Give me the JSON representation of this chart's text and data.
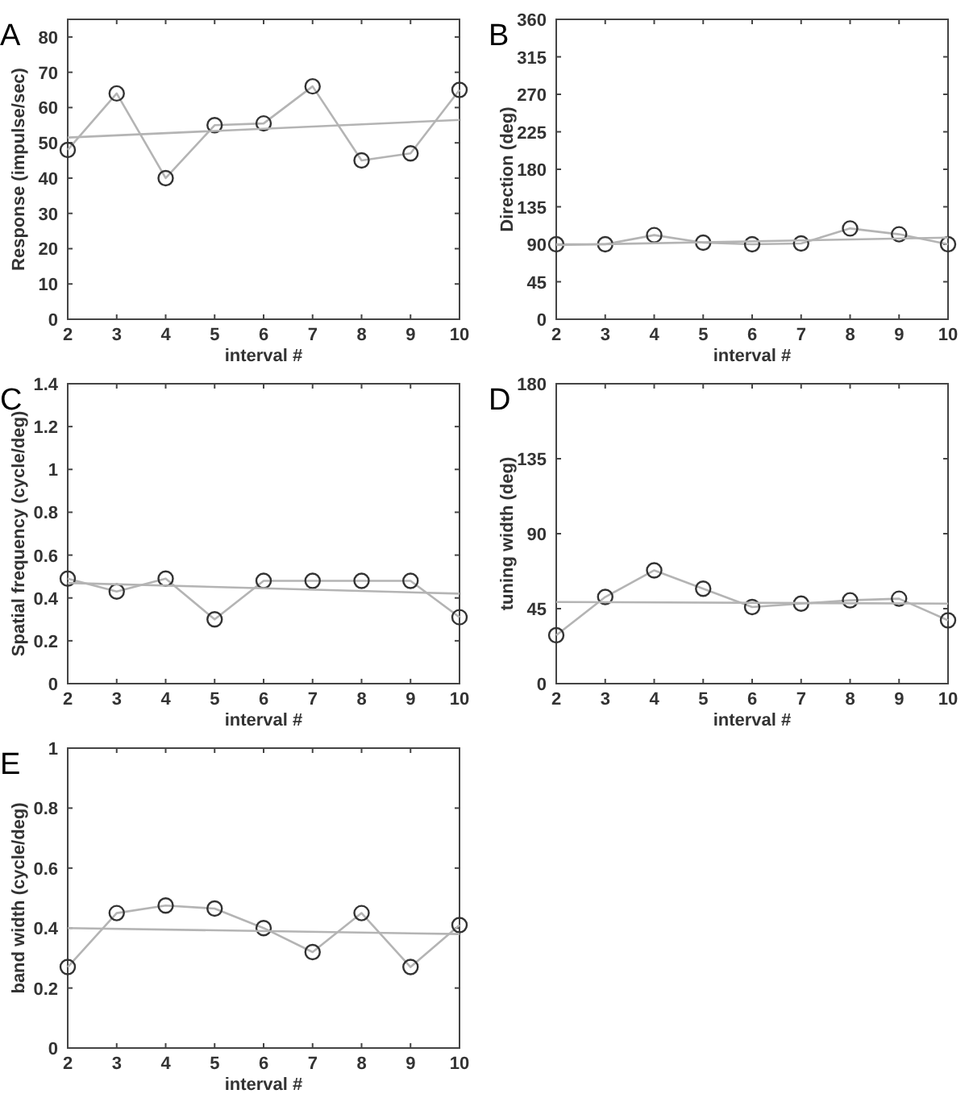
{
  "chart_data": [
    {
      "type": "line",
      "title": "A",
      "xlabel": "interval #",
      "ylabel": "Response (impulse/sec)",
      "xlim": [
        2,
        10
      ],
      "xticks": [
        2,
        3,
        4,
        5,
        6,
        7,
        8,
        9,
        10
      ],
      "ylim": [
        0,
        85
      ],
      "yticks": [
        0,
        10,
        20,
        30,
        40,
        50,
        60,
        70,
        80
      ],
      "series": [
        {
          "color": "#b4b4b4",
          "marker": "circle",
          "x": [
            2,
            3,
            4,
            5,
            6,
            7,
            8,
            9,
            10
          ],
          "values": [
            48,
            64,
            40,
            55,
            55.5,
            66,
            45,
            47,
            65
          ]
        },
        {
          "color": "#b4b4b4",
          "marker": "none",
          "x": [
            2,
            10
          ],
          "values": [
            51.5,
            56.5
          ]
        }
      ]
    },
    {
      "type": "line",
      "title": "B",
      "xlabel": "interval #",
      "ylabel": "Direction (deg)",
      "xlim": [
        2,
        10
      ],
      "xticks": [
        2,
        3,
        4,
        5,
        6,
        7,
        8,
        9,
        10
      ],
      "ylim": [
        0,
        360
      ],
      "yticks": [
        0,
        45,
        90,
        135,
        180,
        225,
        270,
        315,
        360
      ],
      "series": [
        {
          "color": "#b4b4b4",
          "marker": "circle",
          "x": [
            2,
            3,
            4,
            5,
            6,
            7,
            8,
            9,
            10
          ],
          "values": [
            90,
            90,
            101,
            92,
            90,
            91,
            109,
            102,
            90
          ]
        },
        {
          "color": "#b4b4b4",
          "marker": "none",
          "x": [
            2,
            10
          ],
          "values": [
            89,
            98
          ]
        }
      ]
    },
    {
      "type": "line",
      "title": "C",
      "xlabel": "interval #",
      "ylabel": "Spatial frequency (cycle/deg)",
      "xlim": [
        2,
        10
      ],
      "xticks": [
        2,
        3,
        4,
        5,
        6,
        7,
        8,
        9,
        10
      ],
      "ylim": [
        0,
        1.4
      ],
      "yticks": [
        0,
        0.2,
        0.4,
        0.6,
        0.8,
        1,
        1.2,
        1.4
      ],
      "series": [
        {
          "color": "#b4b4b4",
          "marker": "circle",
          "x": [
            2,
            3,
            4,
            5,
            6,
            7,
            8,
            9,
            10
          ],
          "values": [
            0.49,
            0.43,
            0.49,
            0.3,
            0.48,
            0.48,
            0.48,
            0.48,
            0.31
          ]
        },
        {
          "color": "#b4b4b4",
          "marker": "none",
          "x": [
            2,
            10
          ],
          "values": [
            0.47,
            0.42
          ]
        }
      ]
    },
    {
      "type": "line",
      "title": "D",
      "xlabel": "interval #",
      "ylabel": "tuning width (deg)",
      "xlim": [
        2,
        10
      ],
      "xticks": [
        2,
        3,
        4,
        5,
        6,
        7,
        8,
        9,
        10
      ],
      "ylim": [
        0,
        180
      ],
      "yticks": [
        0,
        45,
        90,
        135,
        180
      ],
      "series": [
        {
          "color": "#b4b4b4",
          "marker": "circle",
          "x": [
            2,
            3,
            4,
            5,
            6,
            7,
            8,
            9,
            10
          ],
          "values": [
            29,
            52,
            68,
            57,
            46,
            48,
            50,
            51,
            38
          ]
        },
        {
          "color": "#b4b4b4",
          "marker": "none",
          "x": [
            2,
            10
          ],
          "values": [
            49,
            48
          ]
        }
      ]
    },
    {
      "type": "line",
      "title": "E",
      "xlabel": "interval #",
      "ylabel": "band width (cycle/deg)",
      "xlim": [
        2,
        10
      ],
      "xticks": [
        2,
        3,
        4,
        5,
        6,
        7,
        8,
        9,
        10
      ],
      "ylim": [
        0,
        1
      ],
      "yticks": [
        0,
        0.2,
        0.4,
        0.6,
        0.8,
        1
      ],
      "series": [
        {
          "color": "#b4b4b4",
          "marker": "circle",
          "x": [
            2,
            3,
            4,
            5,
            6,
            7,
            8,
            9,
            10
          ],
          "values": [
            0.27,
            0.45,
            0.475,
            0.465,
            0.4,
            0.32,
            0.45,
            0.27,
            0.41
          ]
        },
        {
          "color": "#b4b4b4",
          "marker": "none",
          "x": [
            2,
            10
          ],
          "values": [
            0.4,
            0.38
          ]
        }
      ]
    }
  ]
}
